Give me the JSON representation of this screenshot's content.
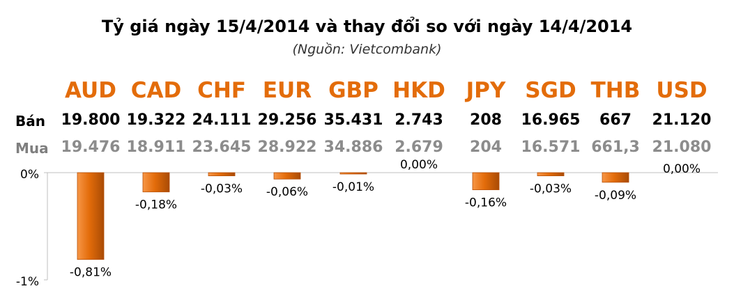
{
  "chart_data": {
    "type": "bar",
    "title": "Tỷ giá ngày 15/4/2014 và thay đổi so với ngày 14/4/2014",
    "subtitle": "(Nguồn: Vietcombank)",
    "categories": [
      "AUD",
      "CAD",
      "CHF",
      "EUR",
      "GBP",
      "HKD",
      "JPY",
      "SGD",
      "THB",
      "USD"
    ],
    "row_labels": {
      "sell": "Bán",
      "buy": "Mua"
    },
    "sell": [
      "19.800",
      "19.322",
      "24.111",
      "29.256",
      "35.431",
      "2.743",
      "208",
      "16.965",
      "667",
      "21.120"
    ],
    "buy": [
      "19.476",
      "18.911",
      "23.645",
      "28.922",
      "34.886",
      "2.679",
      "204",
      "16.571",
      "661,3",
      "21.080"
    ],
    "values": [
      -0.81,
      -0.18,
      -0.03,
      -0.06,
      -0.01,
      0.0,
      -0.16,
      -0.03,
      -0.09,
      0.0
    ],
    "data_labels": [
      "-0,81%",
      "-0,18%",
      "-0,03%",
      "-0,06%",
      "-0,01%",
      "0,00%",
      "-0,16%",
      "-0,03%",
      "-0,09%",
      "0,00%"
    ],
    "y_ticks": [
      {
        "value": 0,
        "label": "0%"
      },
      {
        "value": -1,
        "label": "-1%"
      }
    ],
    "ylim": [
      -1,
      0
    ],
    "colors": {
      "bar": "#e36c0a",
      "bar_dark": "#b64f06",
      "code": "#e36c0a"
    },
    "grid": false
  }
}
